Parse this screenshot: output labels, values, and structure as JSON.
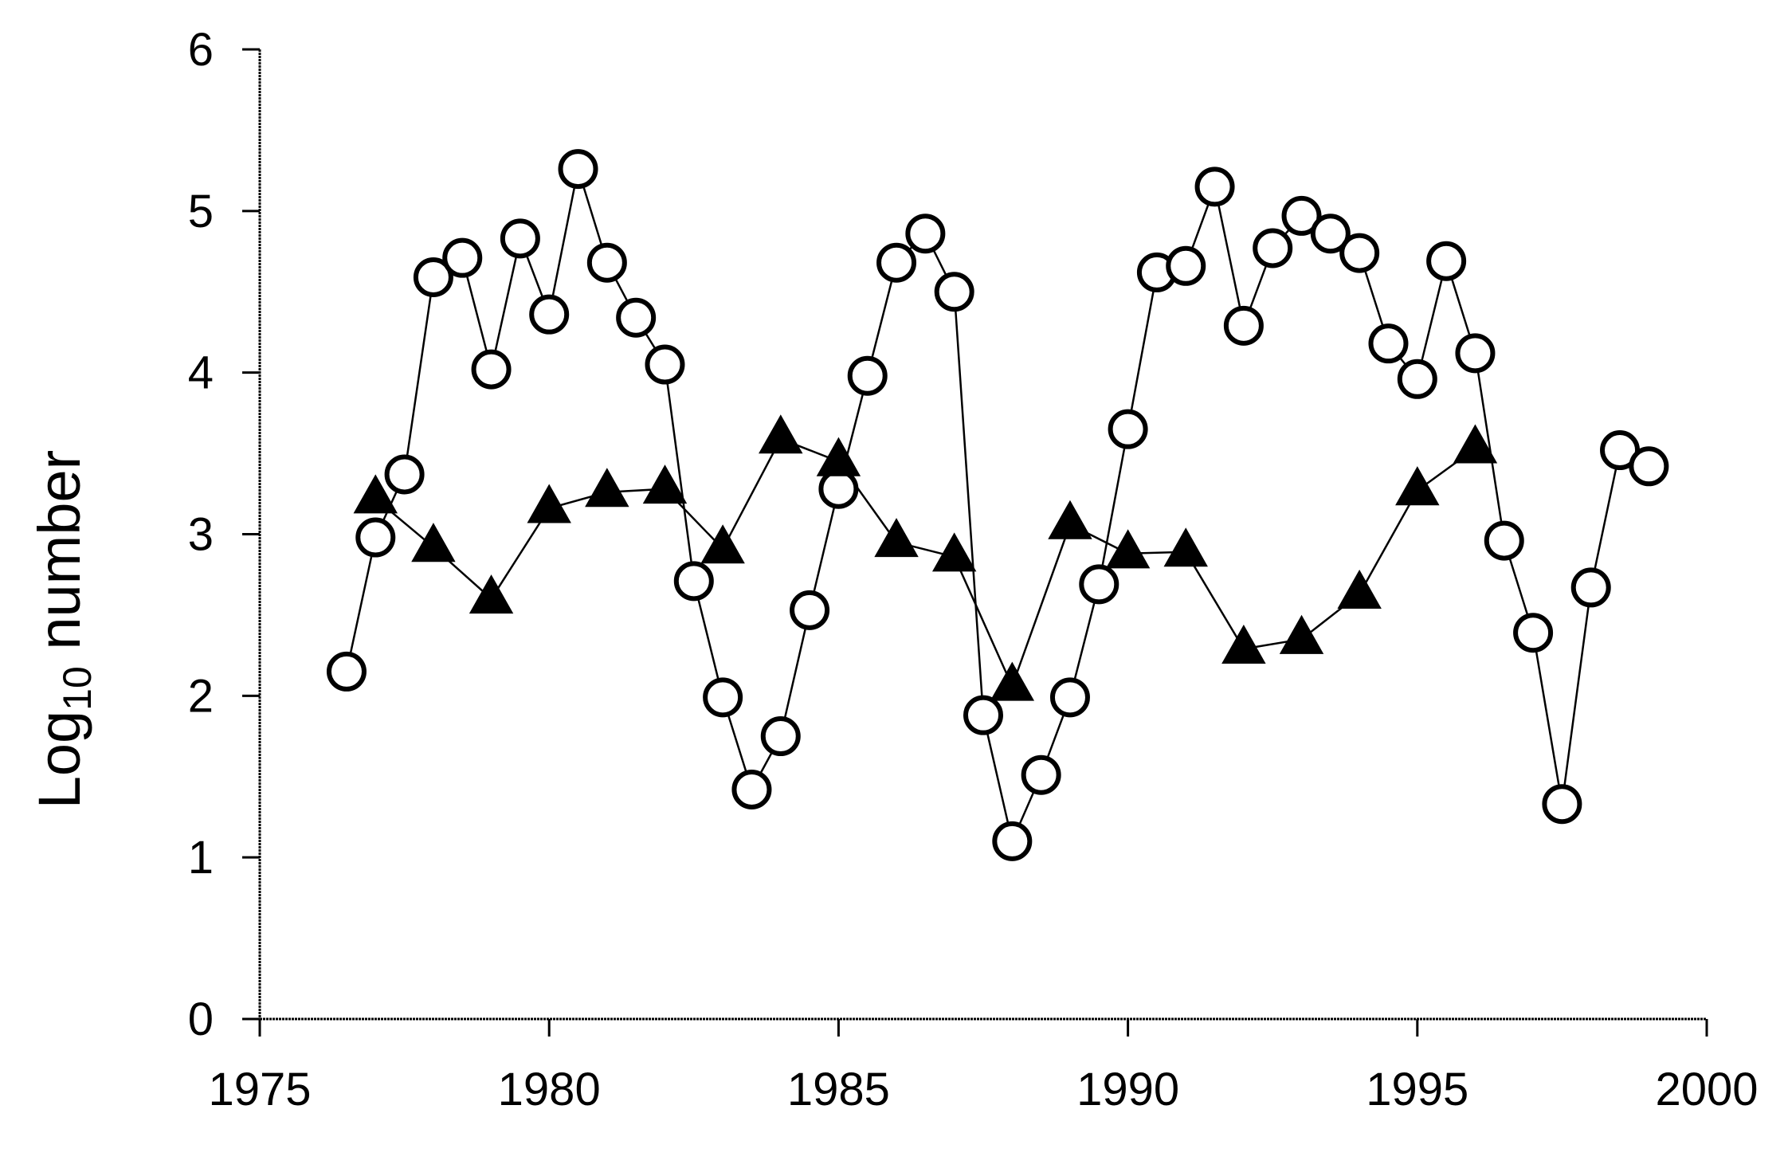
{
  "chart_data": {
    "type": "line",
    "title": "",
    "xlabel": "",
    "ylabel": {
      "prefix": "Log",
      "subscript": "10",
      "suffix": " number"
    },
    "xlim": [
      1975,
      2000
    ],
    "ylim": [
      0,
      6
    ],
    "xticks": [
      1975,
      1980,
      1985,
      1990,
      1995,
      2000
    ],
    "yticks": [
      0,
      1,
      2,
      3,
      4,
      5,
      6
    ],
    "grid": false,
    "legend": "none",
    "colors": {
      "line": "#000000",
      "marker_fill_circle": "#ffffff",
      "marker_fill_triangle": "#000000"
    },
    "series": [
      {
        "marker": "open-circle",
        "points": [
          [
            1976.5,
            2.15
          ],
          [
            1977.0,
            2.98
          ],
          [
            1977.5,
            3.37
          ],
          [
            1978.0,
            4.59
          ],
          [
            1978.5,
            4.71
          ],
          [
            1979.0,
            4.02
          ],
          [
            1979.5,
            4.83
          ],
          [
            1980.0,
            4.36
          ],
          [
            1980.5,
            5.26
          ],
          [
            1981.0,
            4.68
          ],
          [
            1981.5,
            4.34
          ],
          [
            1982.0,
            4.05
          ],
          [
            1982.5,
            2.71
          ],
          [
            1983.0,
            1.99
          ],
          [
            1983.5,
            1.42
          ],
          [
            1984.0,
            1.75
          ],
          [
            1984.5,
            2.53
          ],
          [
            1985.0,
            3.28
          ],
          [
            1985.5,
            3.98
          ],
          [
            1986.0,
            4.68
          ],
          [
            1986.5,
            4.86
          ],
          [
            1987.0,
            4.5
          ],
          [
            1987.5,
            1.88
          ],
          [
            1988.0,
            1.1
          ],
          [
            1988.5,
            1.51
          ],
          [
            1989.0,
            1.99
          ],
          [
            1989.5,
            2.69
          ],
          [
            1990.0,
            3.65
          ],
          [
            1990.5,
            4.62
          ],
          [
            1991.0,
            4.66
          ],
          [
            1991.5,
            5.15
          ],
          [
            1992.0,
            4.29
          ],
          [
            1992.5,
            4.77
          ],
          [
            1993.0,
            4.97
          ],
          [
            1993.5,
            4.86
          ],
          [
            1994.0,
            4.74
          ],
          [
            1994.5,
            4.18
          ],
          [
            1995.0,
            3.96
          ],
          [
            1995.5,
            4.69
          ],
          [
            1996.0,
            4.12
          ],
          [
            1996.5,
            2.96
          ],
          [
            1997.0,
            2.39
          ],
          [
            1997.5,
            1.33
          ],
          [
            1998.0,
            2.67
          ],
          [
            1998.5,
            3.52
          ],
          [
            1999.0,
            3.42
          ]
        ]
      },
      {
        "marker": "filled-triangle",
        "points": [
          [
            1977.0,
            3.22
          ],
          [
            1978.0,
            2.92
          ],
          [
            1979.0,
            2.6
          ],
          [
            1980.0,
            3.16
          ],
          [
            1981.0,
            3.26
          ],
          [
            1982.0,
            3.28
          ],
          [
            1983.0,
            2.91
          ],
          [
            1984.0,
            3.59
          ],
          [
            1985.0,
            3.45
          ],
          [
            1986.0,
            2.95
          ],
          [
            1987.0,
            2.86
          ],
          [
            1988.0,
            2.06
          ],
          [
            1989.0,
            3.06
          ],
          [
            1990.0,
            2.88
          ],
          [
            1991.0,
            2.89
          ],
          [
            1992.0,
            2.29
          ],
          [
            1993.0,
            2.35
          ],
          [
            1994.0,
            2.63
          ],
          [
            1995.0,
            3.27
          ],
          [
            1996.0,
            3.53
          ]
        ]
      }
    ]
  }
}
